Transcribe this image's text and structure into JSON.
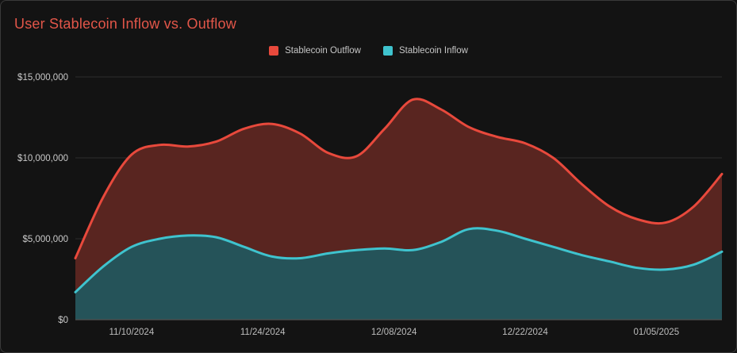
{
  "title": "User Stablecoin Inflow vs. Outflow",
  "legend": [
    {
      "label": "Stablecoin Outflow",
      "color": "#e8493c"
    },
    {
      "label": "Stablecoin Inflow",
      "color": "#3fc3ce"
    }
  ],
  "chart_data": {
    "type": "area",
    "title": "User Stablecoin Inflow vs. Outflow",
    "xlabel": "",
    "ylabel": "",
    "ylim": [
      0,
      15000000
    ],
    "grid": "horizontal",
    "legend_position": "top",
    "background": "#131313",
    "x": [
      0,
      3,
      6,
      9,
      12,
      15,
      18,
      21,
      24,
      27,
      30,
      33,
      36,
      39,
      42,
      45,
      48,
      51,
      54,
      57,
      60,
      63,
      66,
      69
    ],
    "dates": [
      "11/04/2024",
      "11/07/2024",
      "11/10/2024",
      "11/13/2024",
      "11/16/2024",
      "11/19/2024",
      "11/22/2024",
      "11/25/2024",
      "11/28/2024",
      "12/01/2024",
      "12/04/2024",
      "12/07/2024",
      "12/10/2024",
      "12/13/2024",
      "12/16/2024",
      "12/19/2024",
      "12/22/2024",
      "12/25/2024",
      "12/28/2024",
      "12/31/2024",
      "01/03/2025",
      "01/06/2025",
      "01/09/2025",
      "01/12/2025"
    ],
    "series": [
      {
        "name": "Stablecoin Outflow",
        "color": "#e8493c",
        "fill": "#592520",
        "values": [
          3800000,
          7600000,
          10200000,
          10800000,
          10700000,
          11000000,
          11800000,
          12100000,
          11500000,
          10300000,
          10100000,
          11800000,
          13600000,
          13000000,
          11900000,
          11300000,
          10900000,
          10000000,
          8400000,
          7000000,
          6200000,
          6000000,
          7000000,
          9000000
        ]
      },
      {
        "name": "Stablecoin Inflow",
        "color": "#3fc3ce",
        "fill": "#255359",
        "values": [
          1700000,
          3300000,
          4500000,
          5000000,
          5200000,
          5100000,
          4500000,
          3900000,
          3800000,
          4100000,
          4300000,
          4400000,
          4300000,
          4800000,
          5600000,
          5500000,
          5000000,
          4500000,
          4000000,
          3600000,
          3200000,
          3100000,
          3400000,
          4200000
        ]
      }
    ],
    "yticks": [
      {
        "value": 0,
        "label": "$0"
      },
      {
        "value": 5000000,
        "label": "$5,000,000"
      },
      {
        "value": 10000000,
        "label": "$10,000,000"
      },
      {
        "value": 15000000,
        "label": "$15,000,000"
      }
    ],
    "xticks": [
      {
        "x": 6,
        "label": "11/10/2024"
      },
      {
        "x": 20,
        "label": "11/24/2024"
      },
      {
        "x": 34,
        "label": "12/08/2024"
      },
      {
        "x": 48,
        "label": "12/22/2024"
      },
      {
        "x": 62,
        "label": "01/05/2025"
      }
    ]
  }
}
